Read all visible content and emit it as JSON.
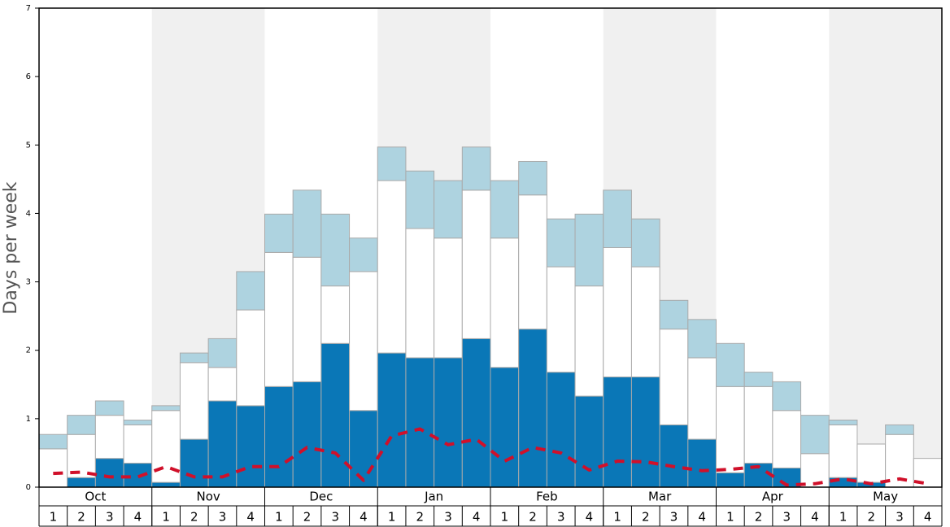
{
  "chart_data": {
    "type": "stacked_bar",
    "ylabel": "Days per week",
    "months": [
      "Oct",
      "Nov",
      "Dec",
      "Jan",
      "Feb",
      "Mar",
      "Apr",
      "May"
    ],
    "categories": [
      "1",
      "2",
      "3",
      "4",
      "1",
      "2",
      "3",
      "4",
      "1",
      "2",
      "3",
      "4",
      "1",
      "2",
      "3",
      "4",
      "1",
      "2",
      "3",
      "4",
      "1",
      "2",
      "3",
      "4",
      "1",
      "2",
      "3",
      "4",
      "1",
      "2",
      "3",
      "4"
    ],
    "ylim": [
      0,
      7
    ],
    "yticks": [
      0,
      1,
      2,
      3,
      4,
      5,
      6,
      7
    ],
    "series": [
      {
        "color": "#0a77b7",
        "values": [
          0,
          0.14,
          0.42,
          0.35,
          0.07,
          0.7,
          1.26,
          1.19,
          1.47,
          1.54,
          2.1,
          1.12,
          1.96,
          1.89,
          1.89,
          2.17,
          1.75,
          2.31,
          1.68,
          1.33,
          1.61,
          1.61,
          0.91,
          0.7,
          0.21,
          0.35,
          0.28,
          0,
          0.14,
          0.07,
          0,
          0
        ]
      },
      {
        "color": "#ffffff",
        "values": [
          0.56,
          0.63,
          0.63,
          0.56,
          1.05,
          1.12,
          0.49,
          1.4,
          1.96,
          1.82,
          0.84,
          2.03,
          2.52,
          1.89,
          1.75,
          2.17,
          1.89,
          1.96,
          1.54,
          1.61,
          1.89,
          1.61,
          1.4,
          1.19,
          1.26,
          1.12,
          0.84,
          0.49,
          0.77,
          0.56,
          0.77,
          0.42
        ]
      },
      {
        "color": "#aed3e0",
        "values": [
          0.21,
          0.28,
          0.21,
          0.07,
          0.07,
          0.14,
          0.42,
          0.56,
          0.56,
          0.98,
          1.05,
          0.49,
          0.49,
          0.84,
          0.84,
          0.63,
          0.84,
          0.49,
          0.7,
          1.05,
          0.84,
          0.7,
          0.42,
          0.56,
          0.63,
          0.21,
          0.42,
          0.56,
          0.07,
          0,
          0.14,
          0
        ]
      }
    ],
    "line": {
      "color": "#d0102a",
      "values": [
        0.2,
        0.22,
        0.15,
        0.15,
        0.3,
        0.15,
        0.15,
        0.3,
        0.3,
        0.58,
        0.5,
        0.1,
        0.75,
        0.85,
        0.62,
        0.7,
        0.38,
        0.58,
        0.5,
        0.25,
        0.38,
        0.37,
        0.3,
        0.24,
        0.26,
        0.3,
        0.03,
        0.05,
        0.12,
        0.05,
        0.12,
        0.05
      ]
    },
    "shade_color": "#f0f0f0"
  }
}
